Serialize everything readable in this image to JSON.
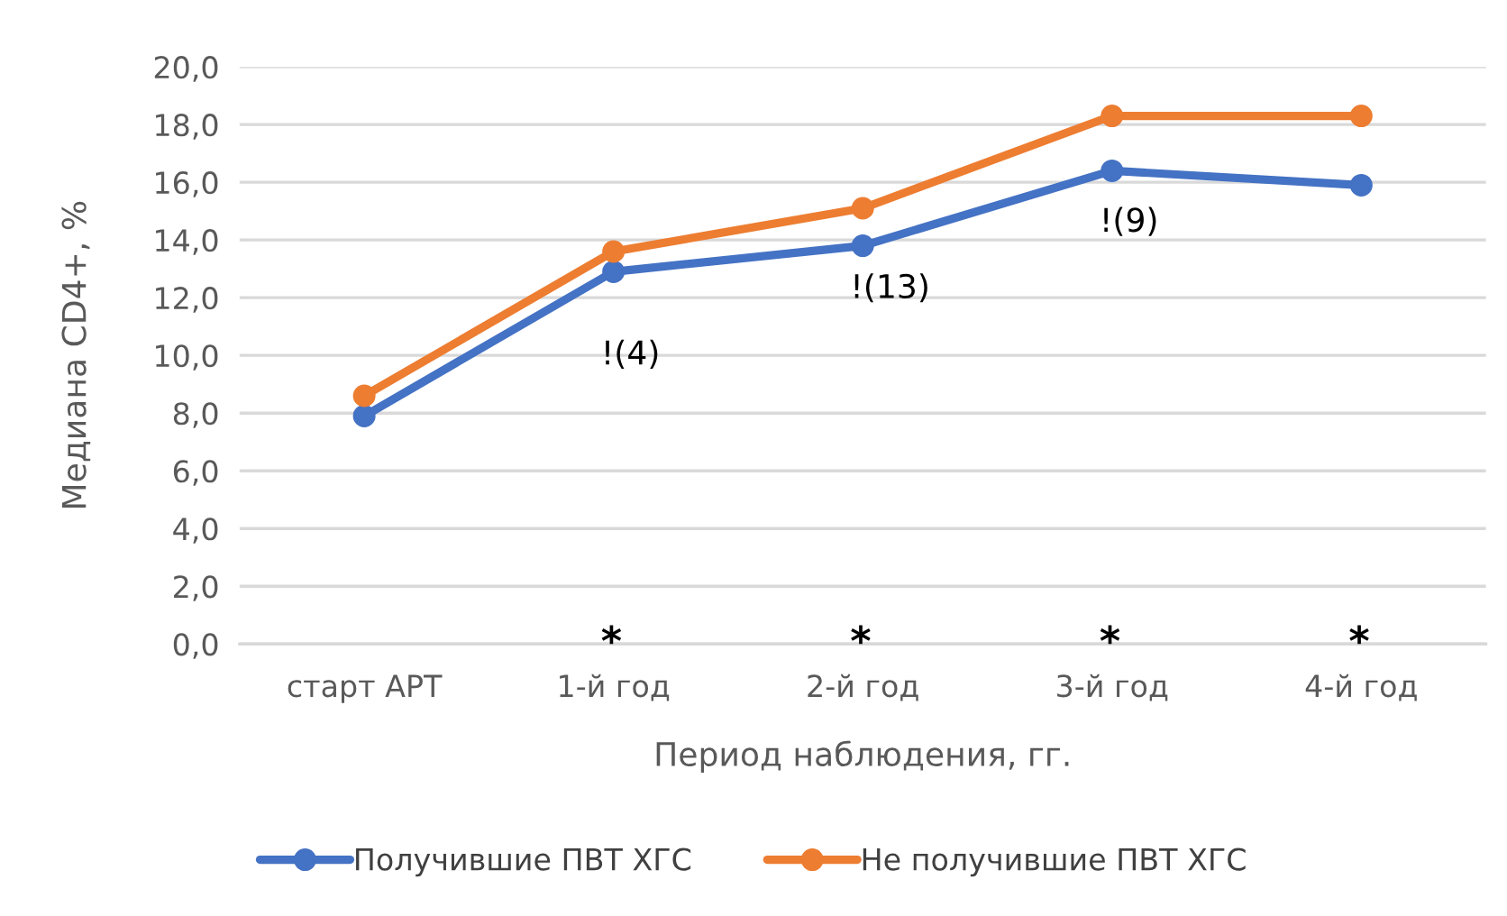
{
  "chart_data": {
    "type": "line",
    "xlabel": "Период наблюдения, гг.",
    "ylabel": "Медиана CD4+, %",
    "categories": [
      "старт АРТ",
      "1-й год",
      "2-й год",
      "3-й год",
      "4-й год"
    ],
    "series": [
      {
        "name": "Получившие ПВТ ХГС",
        "color": "#4472c4",
        "values": [
          7.9,
          12.9,
          13.8,
          16.4,
          15.9
        ]
      },
      {
        "name": "Не получившие ПВТ ХГС",
        "color": "#ed7d31",
        "values": [
          8.6,
          13.6,
          15.1,
          18.3,
          18.3
        ]
      }
    ],
    "ylim": [
      0,
      20
    ],
    "yticks": [
      {
        "value": 0,
        "label": "0,0"
      },
      {
        "value": 2,
        "label": "2,0"
      },
      {
        "value": 4,
        "label": "4,0"
      },
      {
        "value": 6,
        "label": "6,0"
      },
      {
        "value": 8,
        "label": "8,0"
      },
      {
        "value": 10,
        "label": "10,0"
      },
      {
        "value": 12,
        "label": "12,0"
      },
      {
        "value": 14,
        "label": "14,0"
      },
      {
        "value": 16,
        "label": "16,0"
      },
      {
        "value": 18,
        "label": "18,0"
      },
      {
        "value": 20,
        "label": "20,0"
      }
    ],
    "grid": "y",
    "legend": "bottom",
    "marker": "circle",
    "line_style": "solid",
    "annotations": [
      "!(4)",
      "!(13)",
      "!(9)",
      "*",
      "*",
      "*",
      "*"
    ]
  }
}
